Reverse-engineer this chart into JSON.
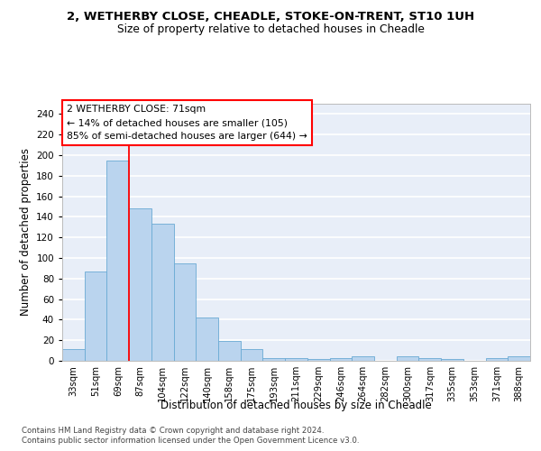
{
  "title_line1": "2, WETHERBY CLOSE, CHEADLE, STOKE-ON-TRENT, ST10 1UH",
  "title_line2": "Size of property relative to detached houses in Cheadle",
  "xlabel": "Distribution of detached houses by size in Cheadle",
  "ylabel": "Number of detached properties",
  "categories": [
    "33sqm",
    "51sqm",
    "69sqm",
    "87sqm",
    "104sqm",
    "122sqm",
    "140sqm",
    "158sqm",
    "175sqm",
    "193sqm",
    "211sqm",
    "229sqm",
    "246sqm",
    "264sqm",
    "282sqm",
    "300sqm",
    "317sqm",
    "335sqm",
    "353sqm",
    "371sqm",
    "388sqm"
  ],
  "values": [
    11,
    87,
    195,
    148,
    133,
    95,
    42,
    19,
    11,
    3,
    3,
    2,
    3,
    4,
    0,
    4,
    3,
    2,
    0,
    3,
    4
  ],
  "bar_color": "#bad4ee",
  "bar_edge_color": "#6aaad4",
  "red_line_bar_index": 2,
  "annotation_line1": "2 WETHERBY CLOSE: 71sqm",
  "annotation_line2": "← 14% of detached houses are smaller (105)",
  "annotation_line3": "85% of semi-detached houses are larger (644) →",
  "ylim": [
    0,
    250
  ],
  "yticks": [
    0,
    20,
    40,
    60,
    80,
    100,
    120,
    140,
    160,
    180,
    200,
    220,
    240
  ],
  "background_color": "#e8eef8",
  "grid_color": "white",
  "footer_line1": "Contains HM Land Registry data © Crown copyright and database right 2024.",
  "footer_line2": "Contains public sector information licensed under the Open Government Licence v3.0."
}
